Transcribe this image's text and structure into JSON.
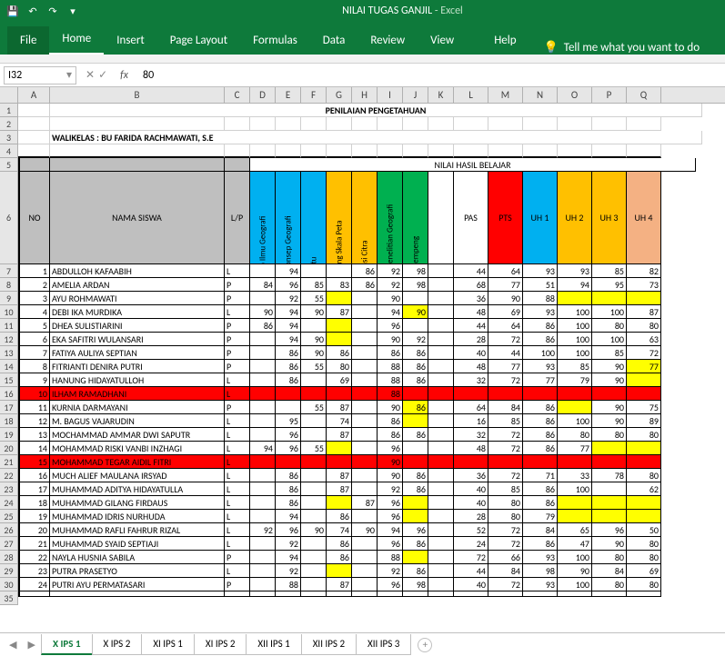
{
  "app": {
    "title": "NILAI TUGAS GANJIL",
    "suffix": "Excel"
  },
  "ribbon": {
    "tabs": [
      "File",
      "Home",
      "Insert",
      "Page Layout",
      "Formulas",
      "Data",
      "Review",
      "View",
      "Help"
    ],
    "tell_me": "Tell me what you want to do"
  },
  "formula": {
    "name_box": "I32",
    "value": "80"
  },
  "columns": [
    "A",
    "B",
    "C",
    "D",
    "E",
    "F",
    "G",
    "H",
    "I",
    "J",
    "K",
    "L",
    "M",
    "N",
    "O",
    "P",
    "Q"
  ],
  "title_row": "PENILAIAN PENGETAHUAN",
  "walikelas": "WALIKELAS : BU FARIDA RACHMAWATI, S.E",
  "headers": {
    "no": "NO",
    "nama": "NAMA SISWA",
    "lp": "L/P",
    "nilai_hasil": "NILAI HASIL BELAJAR",
    "vcols": [
      "Swa video Ilmu Geografi",
      "Contoh Konsep Geografi",
      "Game Kartu",
      "Menghitung Skala Peta",
      "Interpretasi Citra",
      "Laporan Penelitian Geografi",
      "Gerakan Lempeng"
    ],
    "pas": "PAS",
    "pts": "PTS",
    "uh1": "UH 1",
    "uh2": "UH 2",
    "uh3": "UH 3",
    "uh4": "UH 4"
  },
  "vcolors": [
    "#00b0f0",
    "#00b0f0",
    "#00b0f0",
    "#ffc000",
    "#ffc000",
    "#00b050",
    "#00b050"
  ],
  "score_colors": {
    "L": "#ffffff",
    "M": "#ff0000",
    "N": "#00b0f0",
    "O": "#ffc000",
    "P": "#ffc000",
    "Q": "#f4b183"
  },
  "students": [
    {
      "no": 1,
      "nama": "ABDULLOH KAFAABIH",
      "lp": "L",
      "d": "",
      "e": "94",
      "f": "",
      "g": "",
      "h": "86",
      "i": "92",
      "j": "98",
      "k": "",
      "l": "44",
      "m": "64",
      "n": "93",
      "o": "93",
      "p": "85",
      "q": "82",
      "hl": []
    },
    {
      "no": 2,
      "nama": "AMELIA ARDAN",
      "lp": "P",
      "d": "84",
      "e": "96",
      "f": "85",
      "g": "83",
      "h": "86",
      "i": "92",
      "j": "98",
      "k": "",
      "l": "68",
      "m": "77",
      "n": "51",
      "o": "94",
      "p": "95",
      "q": "73",
      "hl": []
    },
    {
      "no": 3,
      "nama": "AYU ROHMAWATI",
      "lp": "P",
      "d": "",
      "e": "92",
      "f": "55",
      "g": "",
      "h": "",
      "i": "90",
      "j": "",
      "k": "",
      "l": "36",
      "m": "90",
      "n": "88",
      "o": "",
      "p": "",
      "q": "",
      "hl": [
        "g",
        "o",
        "p",
        "q"
      ]
    },
    {
      "no": 4,
      "nama": "DEBI IKA MURDIKA",
      "lp": "L",
      "d": "90",
      "e": "94",
      "f": "90",
      "g": "87",
      "h": "",
      "i": "94",
      "j": "90",
      "k": "",
      "l": "48",
      "m": "69",
      "n": "93",
      "o": "100",
      "p": "100",
      "q": "87",
      "hl": [
        "j"
      ]
    },
    {
      "no": 5,
      "nama": "DHEA SULISTIARINI",
      "lp": "P",
      "d": "86",
      "e": "94",
      "f": "",
      "g": "",
      "h": "",
      "i": "96",
      "j": "",
      "k": "",
      "l": "44",
      "m": "64",
      "n": "86",
      "o": "100",
      "p": "80",
      "q": "80",
      "hl": [
        "g"
      ]
    },
    {
      "no": 6,
      "nama": "EKA SAFITRI WULANSARI",
      "lp": "P",
      "d": "",
      "e": "94",
      "f": "90",
      "g": "",
      "h": "",
      "i": "90",
      "j": "92",
      "k": "",
      "l": "28",
      "m": "72",
      "n": "86",
      "o": "100",
      "p": "100",
      "q": "63",
      "hl": [
        "g"
      ]
    },
    {
      "no": 7,
      "nama": "FATIYA AULIYA SEPTIAN",
      "lp": "P",
      "d": "",
      "e": "86",
      "f": "90",
      "g": "86",
      "h": "",
      "i": "86",
      "j": "86",
      "k": "",
      "l": "40",
      "m": "44",
      "n": "100",
      "o": "100",
      "p": "85",
      "q": "72",
      "hl": []
    },
    {
      "no": 8,
      "nama": "FITRIANTI DENIRA PUTRI",
      "lp": "P",
      "d": "",
      "e": "86",
      "f": "55",
      "g": "80",
      "h": "",
      "i": "88",
      "j": "86",
      "k": "",
      "l": "48",
      "m": "77",
      "n": "93",
      "o": "85",
      "p": "90",
      "q": "77",
      "hl": [
        "q"
      ]
    },
    {
      "no": 9,
      "nama": "HANUNG HIDAYATULLOH",
      "lp": "L",
      "d": "",
      "e": "86",
      "f": "",
      "g": "69",
      "h": "",
      "i": "88",
      "j": "86",
      "k": "",
      "l": "32",
      "m": "72",
      "n": "77",
      "o": "79",
      "p": "90",
      "q": "",
      "hl": [
        "q"
      ]
    },
    {
      "no": 10,
      "nama": "ILHAM RAMADHANI",
      "lp": "L",
      "d": "",
      "e": "",
      "f": "",
      "g": "",
      "h": "",
      "i": "88",
      "j": "",
      "k": "",
      "l": "",
      "m": "",
      "n": "",
      "o": "",
      "p": "",
      "q": "",
      "hl": [],
      "redrow": true
    },
    {
      "no": 11,
      "nama": "KURNIA DARMAYANI",
      "lp": "P",
      "d": "",
      "e": "",
      "f": "55",
      "g": "87",
      "h": "",
      "i": "90",
      "j": "86",
      "k": "",
      "l": "64",
      "m": "84",
      "n": "86",
      "o": "",
      "p": "90",
      "q": "75",
      "hl": [
        "j",
        "o"
      ]
    },
    {
      "no": 12,
      "nama": "M. BAGUS VAJARUDIN",
      "lp": "L",
      "d": "",
      "e": "95",
      "f": "",
      "g": "74",
      "h": "",
      "i": "86",
      "j": "",
      "k": "",
      "l": "16",
      "m": "85",
      "n": "86",
      "o": "100",
      "p": "90",
      "q": "89",
      "hl": [
        "j"
      ]
    },
    {
      "no": 13,
      "nama": "MOCHAMMAD AMMAR DWI SAPUTR",
      "lp": "L",
      "d": "",
      "e": "96",
      "f": "",
      "g": "87",
      "h": "",
      "i": "86",
      "j": "86",
      "k": "",
      "l": "32",
      "m": "72",
      "n": "86",
      "o": "80",
      "p": "80",
      "q": "80",
      "hl": []
    },
    {
      "no": 14,
      "nama": "MOHAMMAD RISKI VANBI INZHAGI",
      "lp": "L",
      "d": "94",
      "e": "96",
      "f": "55",
      "g": "",
      "h": "",
      "i": "96",
      "j": "",
      "k": "",
      "l": "48",
      "m": "72",
      "n": "86",
      "o": "77",
      "p": "",
      "q": "",
      "hl": [
        "g",
        "p",
        "q"
      ]
    },
    {
      "no": 15,
      "nama": "MOHAMMAD TEGAR AIDIL FITRI",
      "lp": "L",
      "d": "",
      "e": "",
      "f": "",
      "g": "",
      "h": "",
      "i": "90",
      "j": "",
      "k": "",
      "l": "",
      "m": "",
      "n": "",
      "o": "",
      "p": "",
      "q": "",
      "hl": [],
      "redrow": true
    },
    {
      "no": 16,
      "nama": "MUCH ALIEF MAULANA IRSYAD",
      "lp": "L",
      "d": "",
      "e": "86",
      "f": "",
      "g": "87",
      "h": "",
      "i": "90",
      "j": "86",
      "k": "",
      "l": "36",
      "m": "72",
      "n": "71",
      "o": "33",
      "p": "78",
      "q": "80",
      "hl": []
    },
    {
      "no": 17,
      "nama": "MUHAMMAD ADITYA HIDAYATULLA",
      "lp": "L",
      "d": "",
      "e": "86",
      "f": "",
      "g": "87",
      "h": "",
      "i": "92",
      "j": "86",
      "k": "",
      "l": "40",
      "m": "85",
      "n": "86",
      "o": "100",
      "p": "",
      "q": "62",
      "hl": []
    },
    {
      "no": 18,
      "nama": "MUHAMMAD GILANG FIRDAUS",
      "lp": "L",
      "d": "",
      "e": "86",
      "f": "",
      "g": "",
      "h": "87",
      "i": "96",
      "j": "",
      "k": "",
      "l": "40",
      "m": "80",
      "n": "86",
      "o": "",
      "p": "",
      "q": "",
      "hl": [
        "g",
        "j",
        "o",
        "p",
        "q"
      ]
    },
    {
      "no": 19,
      "nama": "MUHAMMAD IDRIS NURHUDA",
      "lp": "L",
      "d": "",
      "e": "94",
      "f": "",
      "g": "86",
      "h": "",
      "i": "96",
      "j": "",
      "k": "",
      "l": "28",
      "m": "80",
      "n": "79",
      "o": "",
      "p": "",
      "q": "",
      "hl": [
        "j",
        "o",
        "p",
        "q"
      ]
    },
    {
      "no": 20,
      "nama": "MUHAMMAD RAFLI FAHRUR RIZAL",
      "lp": "L",
      "d": "92",
      "e": "96",
      "f": "90",
      "g": "74",
      "h": "90",
      "i": "94",
      "j": "96",
      "k": "",
      "l": "52",
      "m": "72",
      "n": "84",
      "o": "65",
      "p": "96",
      "q": "50",
      "hl": []
    },
    {
      "no": 21,
      "nama": "MUHAMMAD SYAID SEPTIAJI",
      "lp": "L",
      "d": "",
      "e": "92",
      "f": "",
      "g": "86",
      "h": "",
      "i": "96",
      "j": "86",
      "k": "",
      "l": "24",
      "m": "72",
      "n": "86",
      "o": "47",
      "p": "90",
      "q": "80",
      "hl": []
    },
    {
      "no": 22,
      "nama": "NAYLA HUSNIA SABILA",
      "lp": "P",
      "d": "",
      "e": "94",
      "f": "",
      "g": "86",
      "h": "",
      "i": "88",
      "j": "",
      "k": "",
      "l": "72",
      "m": "66",
      "n": "93",
      "o": "100",
      "p": "80",
      "q": "80",
      "hl": [
        "j"
      ]
    },
    {
      "no": 23,
      "nama": "PUTRA PRASETYO",
      "lp": "L",
      "d": "",
      "e": "92",
      "f": "",
      "g": "",
      "h": "",
      "i": "92",
      "j": "86",
      "k": "",
      "l": "44",
      "m": "84",
      "n": "98",
      "o": "90",
      "p": "84",
      "q": "69",
      "hl": [
        "g"
      ]
    },
    {
      "no": 24,
      "nama": "PUTRI AYU PERMATASARI",
      "lp": "P",
      "d": "",
      "e": "88",
      "f": "",
      "g": "87",
      "h": "",
      "i": "96",
      "j": "98",
      "k": "",
      "l": "40",
      "m": "72",
      "n": "93",
      "o": "100",
      "p": "80",
      "q": "80",
      "hl": []
    }
  ],
  "row_labels_start": 7,
  "sheet_tabs": [
    "X IPS 1",
    "X IPS 2",
    "XI IPS 1",
    "XI IPS 2",
    "XII IPS 1",
    "XII IPS 2",
    "XII IPS 3"
  ],
  "active_sheet": 0
}
